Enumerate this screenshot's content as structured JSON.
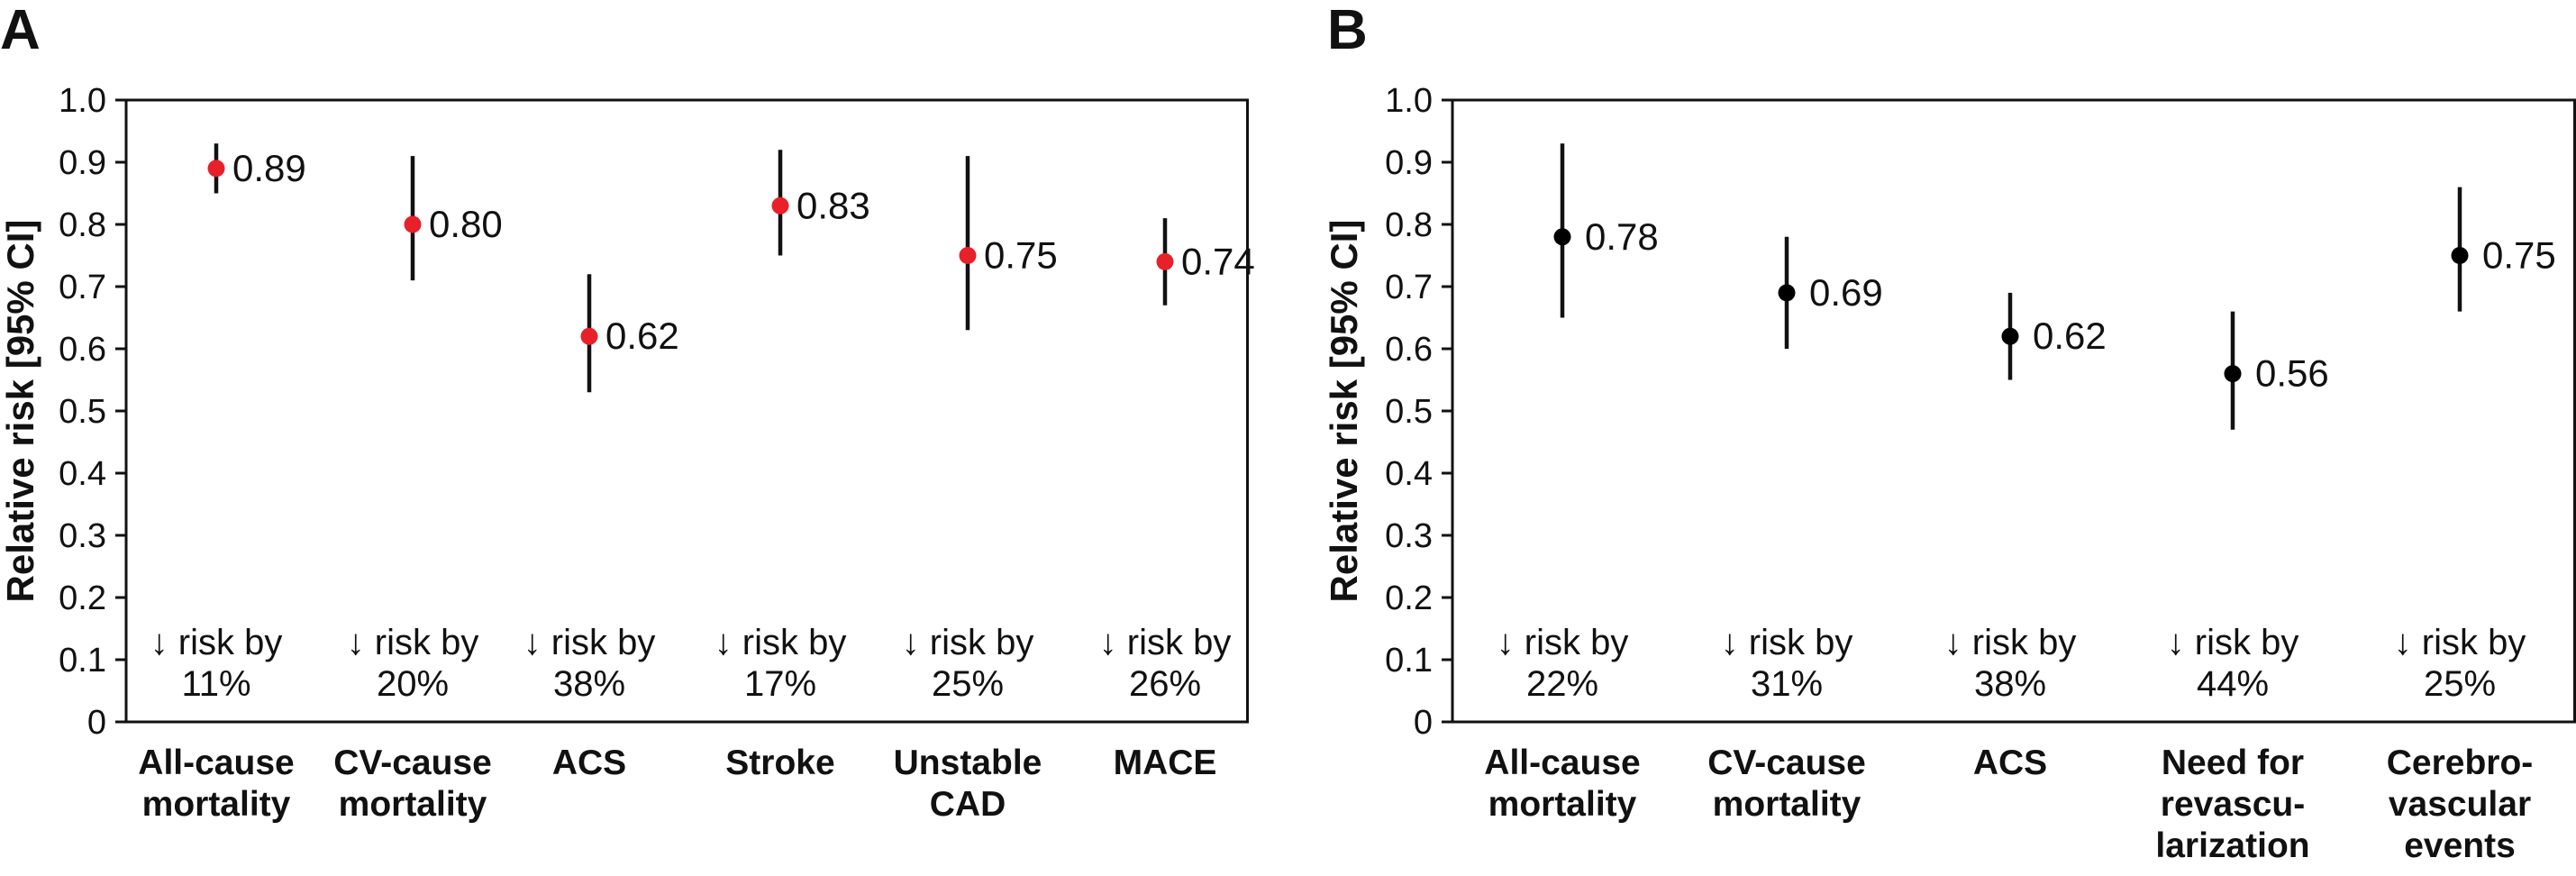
{
  "chart_data": [
    {
      "panel": "A",
      "type": "scatter",
      "ylabel": "Relative risk [95% CI]",
      "ylim": [
        0,
        1.0
      ],
      "yticks": [
        "0",
        "0.1",
        "0.2",
        "0.3",
        "0.4",
        "0.5",
        "0.6",
        "0.7",
        "0.8",
        "0.9",
        "1.0"
      ],
      "marker_color": "#e8202a",
      "categories": [
        [
          "All-cause",
          "mortality"
        ],
        [
          "CV-cause",
          "mortality"
        ],
        [
          "ACS"
        ],
        [
          "Stroke"
        ],
        [
          "Unstable",
          "CAD"
        ],
        [
          "MACE"
        ]
      ],
      "values": [
        0.89,
        0.8,
        0.62,
        0.83,
        0.75,
        0.74
      ],
      "ci_low": [
        0.85,
        0.71,
        0.53,
        0.75,
        0.63,
        0.67
      ],
      "ci_high": [
        0.93,
        0.91,
        0.72,
        0.92,
        0.91,
        0.81
      ],
      "value_labels": [
        "0.89",
        "0.80",
        "0.62",
        "0.83",
        "0.75",
        "0.74"
      ],
      "notes": [
        [
          "↓ risk by",
          "11%"
        ],
        [
          "↓ risk by",
          "20%"
        ],
        [
          "↓ risk by",
          "38%"
        ],
        [
          "↓ risk by",
          "17%"
        ],
        [
          "↓ risk by",
          "25%"
        ],
        [
          "↓ risk by",
          "26%"
        ]
      ]
    },
    {
      "panel": "B",
      "type": "scatter",
      "ylabel": "Relative risk [95% CI]",
      "ylim": [
        0,
        1.0
      ],
      "yticks": [
        "0",
        "0.1",
        "0.2",
        "0.3",
        "0.4",
        "0.5",
        "0.6",
        "0.7",
        "0.8",
        "0.9",
        "1.0"
      ],
      "marker_color": "#000000",
      "categories": [
        [
          "All-cause",
          "mortality"
        ],
        [
          "CV-cause",
          "mortality"
        ],
        [
          "ACS"
        ],
        [
          "Need for",
          "revascu-",
          "larization"
        ],
        [
          "Cerebro-",
          "vascular",
          "events"
        ]
      ],
      "values": [
        0.78,
        0.69,
        0.62,
        0.56,
        0.75
      ],
      "ci_low": [
        0.65,
        0.6,
        0.55,
        0.47,
        0.66
      ],
      "ci_high": [
        0.93,
        0.78,
        0.69,
        0.66,
        0.86
      ],
      "value_labels": [
        "0.78",
        "0.69",
        "0.62",
        "0.56",
        "0.75"
      ],
      "notes": [
        [
          "↓ risk by",
          "22%"
        ],
        [
          "↓ risk by",
          "31%"
        ],
        [
          "↓ risk by",
          "38%"
        ],
        [
          "↓ risk by",
          "44%"
        ],
        [
          "↓ risk by",
          "25%"
        ]
      ]
    }
  ]
}
